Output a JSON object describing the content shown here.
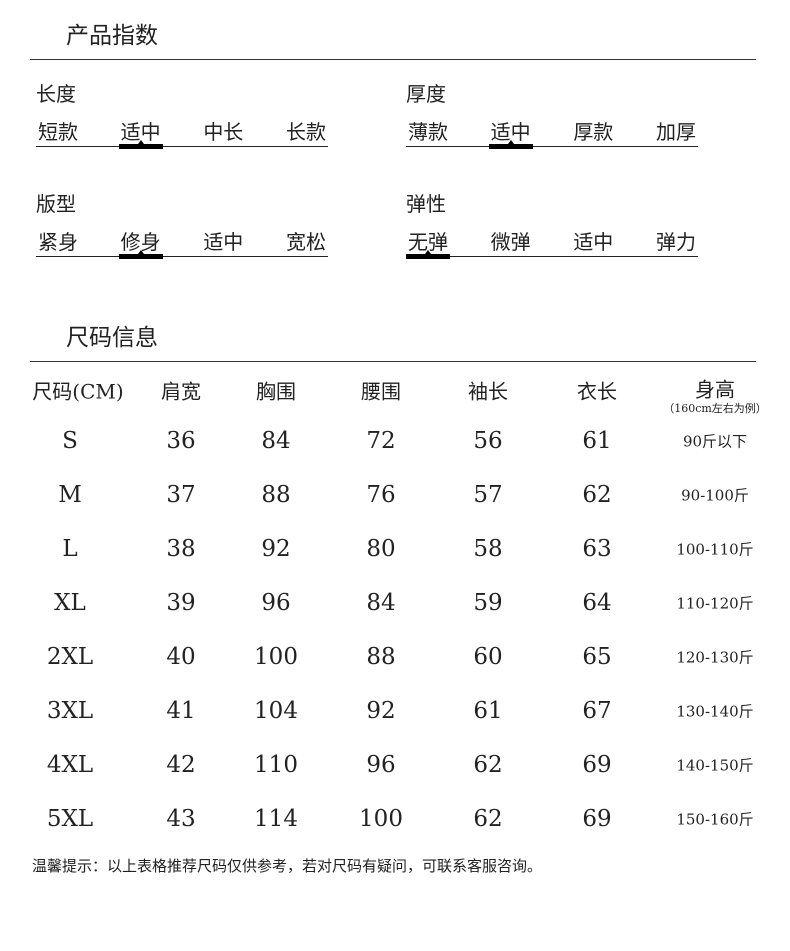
{
  "index_section": {
    "title": "产品指数",
    "groups": [
      {
        "label": "长度",
        "options": [
          "短款",
          "适中",
          "中长",
          "长款"
        ],
        "selected": 1
      },
      {
        "label": "厚度",
        "options": [
          "薄款",
          "适中",
          "厚款",
          "加厚"
        ],
        "selected": 1
      },
      {
        "label": "版型",
        "options": [
          "紧身",
          "修身",
          "适中",
          "宽松"
        ],
        "selected": 1
      },
      {
        "label": "弹性",
        "options": [
          "无弹",
          "微弹",
          "适中",
          "弹力"
        ],
        "selected": 0
      }
    ]
  },
  "size_section": {
    "title": "尺码信息",
    "headers": [
      "尺码(CM)",
      "肩宽",
      "胸围",
      "腰围",
      "袖长",
      "衣长",
      "身高"
    ],
    "height_note": "（160cm左右为例）",
    "rows": [
      [
        "S",
        "36",
        "84",
        "72",
        "56",
        "61",
        "90斤以下"
      ],
      [
        "M",
        "37",
        "88",
        "76",
        "57",
        "62",
        "90-100斤"
      ],
      [
        "L",
        "38",
        "92",
        "80",
        "58",
        "63",
        "100-110斤"
      ],
      [
        "XL",
        "39",
        "96",
        "84",
        "59",
        "64",
        "110-120斤"
      ],
      [
        "2XL",
        "40",
        "100",
        "88",
        "60",
        "65",
        "120-130斤"
      ],
      [
        "3XL",
        "41",
        "104",
        "92",
        "61",
        "67",
        "130-140斤"
      ],
      [
        "4XL",
        "42",
        "110",
        "96",
        "62",
        "69",
        "140-150斤"
      ],
      [
        "5XL",
        "43",
        "114",
        "100",
        "62",
        "69",
        "150-160斤"
      ]
    ]
  },
  "note": "温馨提示：以上表格推荐尺码仅供参考，若对尺码有疑问，可联系客服咨询。"
}
